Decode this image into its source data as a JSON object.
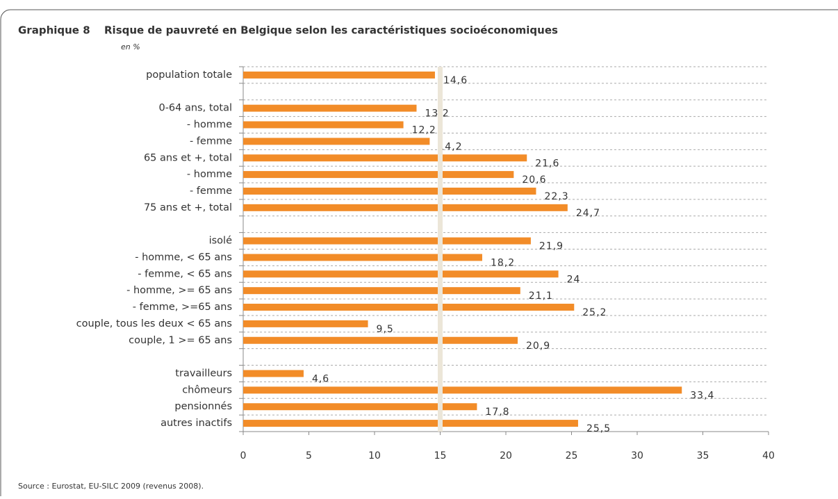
{
  "chart_data": {
    "type": "barh",
    "label": "Graphique 8",
    "title": "Risque de pauvreté en Belgique selon les caractéristiques socioéconomiques",
    "subtitle": "en %",
    "source": "Source : Eurostat, EU-SILC 2009 (revenus 2008).",
    "categories": [
      "population totale",
      null,
      "0-64 ans, total",
      "- homme",
      "- femme",
      "65 ans et +, total",
      "- homme",
      "- femme",
      "75 ans et +, total",
      null,
      "isolé",
      "- homme, < 65 ans",
      "- femme, < 65 ans",
      "- homme, >= 65 ans",
      "- femme, >=65 ans",
      "couple, tous les deux < 65 ans",
      "couple, 1 >= 65 ans",
      null,
      "travailleurs",
      "chômeurs",
      "pensionnés",
      "autres inactifs"
    ],
    "values": [
      14.6,
      null,
      13.2,
      12.2,
      14.2,
      21.6,
      20.6,
      22.3,
      24.7,
      null,
      21.9,
      18.2,
      24,
      21.1,
      25.2,
      9.5,
      20.9,
      null,
      4.6,
      33.4,
      17.8,
      25.5
    ],
    "value_labels": [
      "14,6",
      null,
      "13,2",
      "12,2",
      "14,2",
      "21,6",
      "20,6",
      "22,3",
      "24,7",
      null,
      "21,9",
      "18,2",
      "24",
      "21,1",
      "25,2",
      "9,5",
      "20,9",
      null,
      "4,6",
      "33,4",
      "17,8",
      "25,5"
    ],
    "color": "#f28c28",
    "reference_line": 15,
    "xlim": [
      0,
      40
    ],
    "xticks": [
      0,
      5,
      10,
      15,
      20,
      25,
      30,
      35,
      40
    ]
  }
}
